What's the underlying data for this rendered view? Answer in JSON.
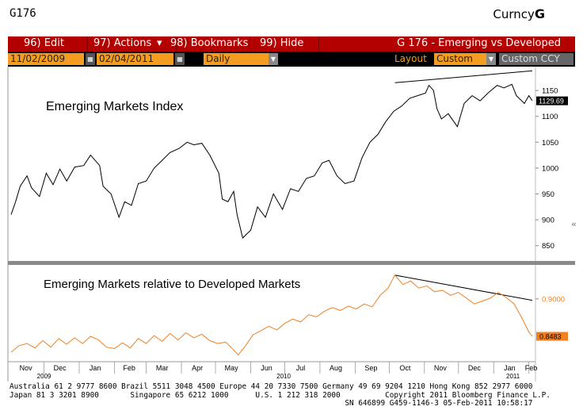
{
  "header": {
    "code": "G176",
    "brand_prefix": "Curncy",
    "brand_letter": "G"
  },
  "menu": {
    "edit": "96) Edit",
    "actions": "97) Actions",
    "bookmarks": "98) Bookmarks",
    "hide": "99) Hide",
    "graph_title": "G 176 - Emerging vs Developed"
  },
  "toolbar": {
    "start_date": "11/02/2009",
    "end_date": "02/04/2011",
    "period": "Daily",
    "layout_label": "Layout",
    "layout_value": "Custom",
    "custom_ccy": "Custom CCY"
  },
  "colors": {
    "menu_bar": "#b30000",
    "field": "#f39c1f",
    "top_series": "#000000",
    "bottom_series": "#f08020",
    "last_value_badge_bottom": "#f08020"
  },
  "chart_data": [
    {
      "type": "line",
      "title": "Emerging Markets Index",
      "ylim": [
        822,
        1190
      ],
      "yticks": [
        850,
        900,
        950,
        1000,
        1050,
        1100,
        1150
      ],
      "last_value": "1129.69",
      "x_start": "2009-11-02",
      "x_end": "2011-02-04",
      "trendline": [
        [
          "2010-10-06",
          1165
        ],
        [
          "2011-02-04",
          1188
        ]
      ],
      "series": [
        {
          "values": [
            [
              "2009-11-02",
              910
            ],
            [
              "2009-11-06",
              935
            ],
            [
              "2009-11-10",
              965
            ],
            [
              "2009-11-16",
              985
            ],
            [
              "2009-11-20",
              962
            ],
            [
              "2009-11-27",
              945
            ],
            [
              "2009-12-03",
              990
            ],
            [
              "2009-12-09",
              968
            ],
            [
              "2009-12-15",
              998
            ],
            [
              "2009-12-21",
              975
            ],
            [
              "2009-12-28",
              1002
            ],
            [
              "2010-01-05",
              1005
            ],
            [
              "2010-01-11",
              1025
            ],
            [
              "2010-01-19",
              1005
            ],
            [
              "2010-01-22",
              965
            ],
            [
              "2010-01-29",
              950
            ],
            [
              "2010-02-05",
              905
            ],
            [
              "2010-02-10",
              935
            ],
            [
              "2010-02-16",
              928
            ],
            [
              "2010-02-22",
              970
            ],
            [
              "2010-03-01",
              975
            ],
            [
              "2010-03-08",
              1000
            ],
            [
              "2010-03-15",
              1015
            ],
            [
              "2010-03-22",
              1030
            ],
            [
              "2010-03-30",
              1038
            ],
            [
              "2010-04-06",
              1050
            ],
            [
              "2010-04-12",
              1045
            ],
            [
              "2010-04-19",
              1048
            ],
            [
              "2010-04-26",
              1025
            ],
            [
              "2010-05-04",
              990
            ],
            [
              "2010-05-07",
              940
            ],
            [
              "2010-05-12",
              935
            ],
            [
              "2010-05-17",
              955
            ],
            [
              "2010-05-20",
              910
            ],
            [
              "2010-05-25",
              865
            ],
            [
              "2010-06-01",
              880
            ],
            [
              "2010-06-07",
              925
            ],
            [
              "2010-06-14",
              905
            ],
            [
              "2010-06-21",
              950
            ],
            [
              "2010-06-29",
              920
            ],
            [
              "2010-07-06",
              960
            ],
            [
              "2010-07-13",
              955
            ],
            [
              "2010-07-20",
              980
            ],
            [
              "2010-07-27",
              985
            ],
            [
              "2010-08-03",
              1010
            ],
            [
              "2010-08-09",
              1015
            ],
            [
              "2010-08-16",
              985
            ],
            [
              "2010-08-23",
              970
            ],
            [
              "2010-08-31",
              975
            ],
            [
              "2010-09-07",
              1020
            ],
            [
              "2010-09-14",
              1050
            ],
            [
              "2010-09-21",
              1065
            ],
            [
              "2010-09-28",
              1090
            ],
            [
              "2010-10-05",
              1110
            ],
            [
              "2010-10-12",
              1120
            ],
            [
              "2010-10-19",
              1135
            ],
            [
              "2010-10-26",
              1140
            ],
            [
              "2010-11-02",
              1145
            ],
            [
              "2010-11-05",
              1160
            ],
            [
              "2010-11-09",
              1150
            ],
            [
              "2010-11-12",
              1115
            ],
            [
              "2010-11-16",
              1095
            ],
            [
              "2010-11-22",
              1105
            ],
            [
              "2010-11-30",
              1080
            ],
            [
              "2010-12-06",
              1125
            ],
            [
              "2010-12-13",
              1140
            ],
            [
              "2010-12-20",
              1130
            ],
            [
              "2010-12-27",
              1145
            ],
            [
              "2011-01-04",
              1160
            ],
            [
              "2011-01-10",
              1155
            ],
            [
              "2011-01-17",
              1162
            ],
            [
              "2011-01-21",
              1140
            ],
            [
              "2011-01-28",
              1125
            ],
            [
              "2011-02-01",
              1140
            ],
            [
              "2011-02-04",
              1130
            ]
          ]
        }
      ]
    },
    {
      "type": "line",
      "title": "Emerging Markets relative to Developed Markets",
      "ylim": [
        0.815,
        0.945
      ],
      "yticks": [
        0.9
      ],
      "ytick_labels": [
        "0.9000"
      ],
      "last_value": "0.8483",
      "x_start": "2009-11-02",
      "x_end": "2011-02-04",
      "trendline": [
        [
          "2010-10-06",
          0.933
        ],
        [
          "2011-02-04",
          0.898
        ]
      ],
      "series": [
        {
          "values": [
            [
              "2009-11-02",
              0.826
            ],
            [
              "2009-11-09",
              0.835
            ],
            [
              "2009-11-16",
              0.838
            ],
            [
              "2009-11-23",
              0.832
            ],
            [
              "2009-11-30",
              0.842
            ],
            [
              "2009-12-07",
              0.833
            ],
            [
              "2009-12-14",
              0.845
            ],
            [
              "2009-12-21",
              0.837
            ],
            [
              "2009-12-28",
              0.846
            ],
            [
              "2010-01-04",
              0.838
            ],
            [
              "2010-01-11",
              0.848
            ],
            [
              "2010-01-18",
              0.843
            ],
            [
              "2010-01-25",
              0.833
            ],
            [
              "2010-02-01",
              0.831
            ],
            [
              "2010-02-08",
              0.839
            ],
            [
              "2010-02-15",
              0.832
            ],
            [
              "2010-02-22",
              0.845
            ],
            [
              "2010-03-01",
              0.838
            ],
            [
              "2010-03-08",
              0.849
            ],
            [
              "2010-03-15",
              0.841
            ],
            [
              "2010-03-22",
              0.852
            ],
            [
              "2010-03-29",
              0.843
            ],
            [
              "2010-04-05",
              0.853
            ],
            [
              "2010-04-12",
              0.846
            ],
            [
              "2010-04-19",
              0.851
            ],
            [
              "2010-04-26",
              0.842
            ],
            [
              "2010-05-03",
              0.838
            ],
            [
              "2010-05-10",
              0.84
            ],
            [
              "2010-05-17",
              0.829
            ],
            [
              "2010-05-21",
              0.822
            ],
            [
              "2010-05-27",
              0.834
            ],
            [
              "2010-06-03",
              0.85
            ],
            [
              "2010-06-10",
              0.856
            ],
            [
              "2010-06-17",
              0.862
            ],
            [
              "2010-06-24",
              0.857
            ],
            [
              "2010-07-01",
              0.866
            ],
            [
              "2010-07-08",
              0.872
            ],
            [
              "2010-07-15",
              0.868
            ],
            [
              "2010-07-22",
              0.878
            ],
            [
              "2010-07-29",
              0.875
            ],
            [
              "2010-08-05",
              0.883
            ],
            [
              "2010-08-12",
              0.888
            ],
            [
              "2010-08-19",
              0.884
            ],
            [
              "2010-08-26",
              0.89
            ],
            [
              "2010-09-02",
              0.886
            ],
            [
              "2010-09-09",
              0.893
            ],
            [
              "2010-09-16",
              0.889
            ],
            [
              "2010-09-23",
              0.905
            ],
            [
              "2010-09-30",
              0.915
            ],
            [
              "2010-10-06",
              0.933
            ],
            [
              "2010-10-13",
              0.92
            ],
            [
              "2010-10-20",
              0.925
            ],
            [
              "2010-10-27",
              0.915
            ],
            [
              "2010-11-03",
              0.918
            ],
            [
              "2010-11-10",
              0.91
            ],
            [
              "2010-11-17",
              0.912
            ],
            [
              "2010-11-24",
              0.905
            ],
            [
              "2010-12-01",
              0.909
            ],
            [
              "2010-12-08",
              0.901
            ],
            [
              "2010-12-15",
              0.893
            ],
            [
              "2010-12-22",
              0.897
            ],
            [
              "2010-12-29",
              0.901
            ],
            [
              "2011-01-05",
              0.909
            ],
            [
              "2011-01-12",
              0.902
            ],
            [
              "2011-01-19",
              0.893
            ],
            [
              "2011-01-26",
              0.873
            ],
            [
              "2011-02-01",
              0.854
            ],
            [
              "2011-02-04",
              0.848
            ]
          ]
        }
      ]
    }
  ],
  "x_axis": {
    "months": [
      {
        "label": "Nov",
        "date": "2009-11-15"
      },
      {
        "label": "Dec",
        "date": "2009-12-15"
      },
      {
        "label": "Jan",
        "date": "2010-01-15"
      },
      {
        "label": "Feb",
        "date": "2010-02-14"
      },
      {
        "label": "Mar",
        "date": "2010-03-15"
      },
      {
        "label": "Apr",
        "date": "2010-04-15"
      },
      {
        "label": "May",
        "date": "2010-05-15"
      },
      {
        "label": "Jun",
        "date": "2010-06-15"
      },
      {
        "label": "Jul",
        "date": "2010-07-15"
      },
      {
        "label": "Aug",
        "date": "2010-08-15"
      },
      {
        "label": "Sep",
        "date": "2010-09-15"
      },
      {
        "label": "Oct",
        "date": "2010-10-15"
      },
      {
        "label": "Nov",
        "date": "2010-11-15"
      },
      {
        "label": "Dec",
        "date": "2010-12-15"
      },
      {
        "label": "Jan",
        "date": "2011-01-15"
      },
      {
        "label": "Feb",
        "date": "2011-02-03"
      }
    ],
    "years": [
      {
        "label": "2009",
        "date": "2009-12-01"
      },
      {
        "label": "2010",
        "date": "2010-06-30"
      },
      {
        "label": "2011",
        "date": "2011-01-18"
      }
    ]
  },
  "footer": {
    "line1": "Australia 61 2 9777 8600 Brazil 5511 3048 4500 Europe 44 20 7330 7500 Germany 49 69 9204 1210 Hong Kong 852 2977 6000",
    "line2": "Japan 81 3 3201 8900       Singapore 65 6212 1000      U.S. 1 212 318 2000          Copyright 2011 Bloomberg Finance L.P.",
    "line3": "                                                                           SN 646899 G459-1146-3 05-Feb-2011 10:58:17"
  }
}
